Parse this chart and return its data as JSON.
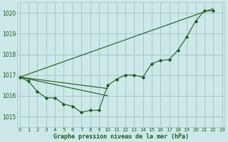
{
  "title": "Graphe pression niveau de la mer (hPa)",
  "bg_color": "#cce8e8",
  "grid_color": "#a8c8c8",
  "line_color": "#1a5c1a",
  "ylim": [
    1014.5,
    1020.5
  ],
  "xlim": [
    -0.3,
    23.3
  ],
  "yticks": [
    1015,
    1016,
    1017,
    1018,
    1019,
    1020
  ],
  "xticks": [
    0,
    1,
    2,
    3,
    4,
    5,
    6,
    7,
    8,
    9,
    10,
    11,
    12,
    13,
    14,
    15,
    16,
    17,
    18,
    19,
    20,
    21,
    22,
    23
  ],
  "main_series_x": [
    0,
    1,
    2,
    3,
    4,
    5,
    6,
    7,
    8,
    9,
    10,
    11,
    12,
    13,
    14,
    15,
    16,
    17,
    18,
    19,
    20,
    21,
    22
  ],
  "main_series_y": [
    1016.9,
    1016.7,
    1016.2,
    1015.9,
    1015.9,
    1015.6,
    1015.5,
    1015.2,
    1015.3,
    1015.3,
    1016.5,
    1016.8,
    1017.0,
    1017.0,
    1016.9,
    1017.55,
    1017.7,
    1017.75,
    1018.2,
    1018.85,
    1019.6,
    1020.1,
    1020.1
  ],
  "fan_lines": [
    {
      "x": [
        0,
        10
      ],
      "y": [
        1016.9,
        1016.0
      ]
    },
    {
      "x": [
        0,
        10
      ],
      "y": [
        1016.9,
        1016.35
      ]
    },
    {
      "x": [
        0,
        22
      ],
      "y": [
        1016.9,
        1020.2
      ]
    }
  ]
}
